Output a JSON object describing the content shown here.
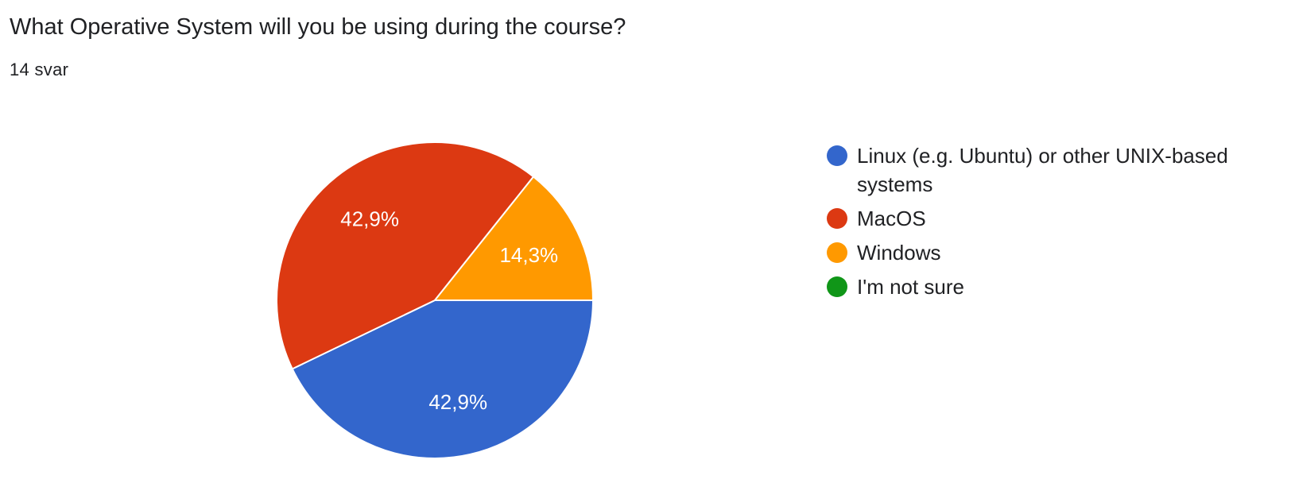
{
  "question": {
    "title": "What Operative System will you be using during the course?",
    "responses": "14 svar"
  },
  "chart_data": {
    "type": "pie",
    "title": "What Operative System will you be using during the course?",
    "slices": [
      {
        "label": "Linux (e.g. Ubuntu) or other UNIX-based systems",
        "value": 42.9,
        "display": "42,9%",
        "color": "#3366cc"
      },
      {
        "label": "MacOS",
        "value": 42.9,
        "display": "42,9%",
        "color": "#dc3912"
      },
      {
        "label": "Windows",
        "value": 14.3,
        "display": "14,3%",
        "color": "#ff9900"
      },
      {
        "label": "I'm not sure",
        "value": 0,
        "display": "",
        "color": "#109618"
      }
    ],
    "legend_position": "right"
  }
}
